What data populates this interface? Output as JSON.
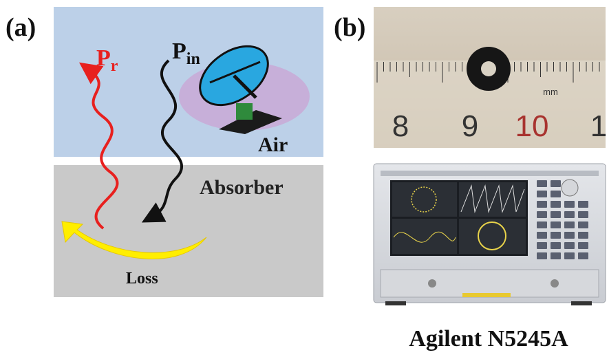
{
  "panel_a": {
    "label": "(a)",
    "reflected": {
      "symbol": "P",
      "subscript": "r"
    },
    "incident": {
      "symbol": "P",
      "subscript": "in"
    },
    "air_label": "Air",
    "absorber_label": "Absorber",
    "loss_label": "Loss"
  },
  "panel_b": {
    "label": "(b)",
    "ruler": {
      "numbers": [
        "8",
        "9",
        "10",
        "1"
      ],
      "unit": "mm"
    },
    "instrument_caption": "Agilent N5245A"
  }
}
